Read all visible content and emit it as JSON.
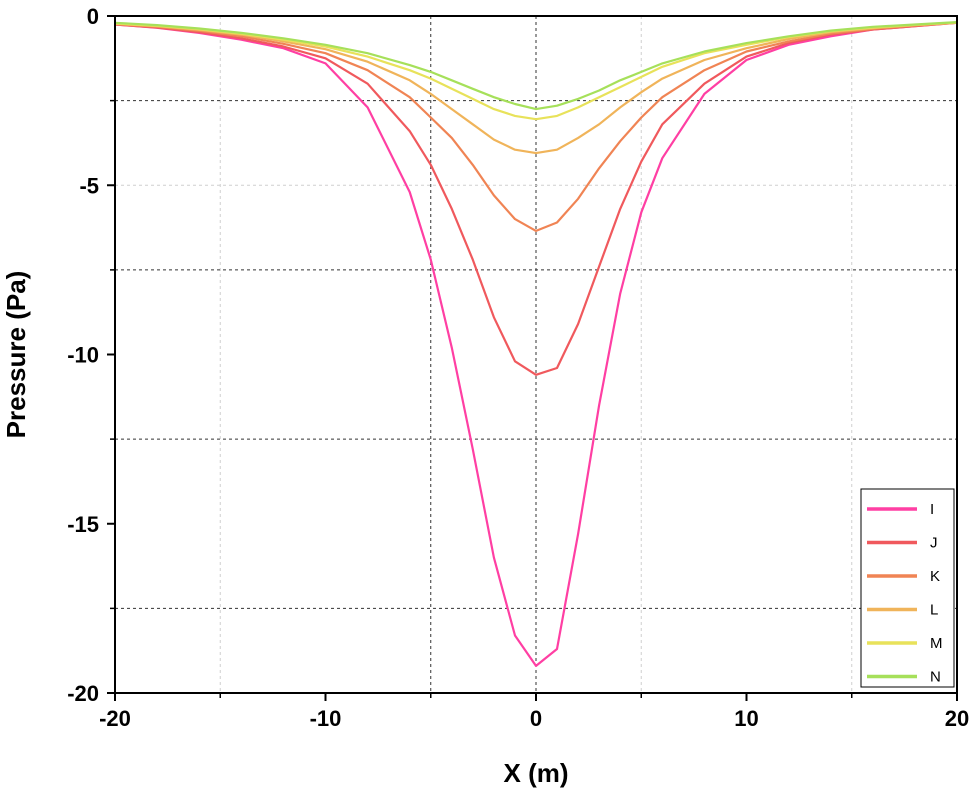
{
  "chart_data": {
    "type": "line",
    "xlabel": "X (m)",
    "ylabel": "Pressure (Pa)",
    "xlim": [
      -20,
      20
    ],
    "ylim": [
      -20,
      0
    ],
    "x_ticks": [
      -20,
      -10,
      0,
      10,
      20
    ],
    "y_ticks": [
      0,
      -5,
      -10,
      -15,
      -20
    ],
    "x_tick_labels": [
      "-20",
      "-10",
      "0",
      "10",
      "20"
    ],
    "y_tick_labels": [
      "0",
      "-5",
      "-10",
      "-15",
      "-20"
    ],
    "grid": "dashed (x: -15, -5, 0, 5, 15; y: -2.5, -5, -7.5, -12.5, -17.5)",
    "legend_position": "bottom-right",
    "x": [
      -20,
      -18,
      -16,
      -14,
      -12,
      -10,
      -8,
      -6,
      -5,
      -4,
      -3,
      -2,
      -1,
      0,
      1,
      2,
      3,
      4,
      5,
      6,
      8,
      10,
      12,
      14,
      16,
      18,
      20
    ],
    "series": [
      {
        "name": "I",
        "color": "#ff3fa3",
        "values": [
          -0.25,
          -0.35,
          -0.5,
          -0.7,
          -0.95,
          -1.4,
          -2.7,
          -5.2,
          -7.2,
          -9.8,
          -12.8,
          -16.0,
          -18.3,
          -19.2,
          -18.7,
          -15.3,
          -11.5,
          -8.2,
          -5.8,
          -4.2,
          -2.3,
          -1.3,
          -0.85,
          -0.6,
          -0.4,
          -0.3,
          -0.2
        ]
      },
      {
        "name": "J",
        "color": "#f0595d",
        "values": [
          -0.25,
          -0.34,
          -0.48,
          -0.66,
          -0.9,
          -1.25,
          -2.0,
          -3.4,
          -4.4,
          -5.7,
          -7.2,
          -8.9,
          -10.2,
          -10.6,
          -10.4,
          -9.1,
          -7.4,
          -5.7,
          -4.3,
          -3.2,
          -2.0,
          -1.2,
          -0.8,
          -0.55,
          -0.4,
          -0.3,
          -0.2
        ]
      },
      {
        "name": "K",
        "color": "#f08454",
        "values": [
          -0.24,
          -0.32,
          -0.44,
          -0.6,
          -0.82,
          -1.1,
          -1.6,
          -2.4,
          -3.0,
          -3.6,
          -4.4,
          -5.3,
          -6.0,
          -6.35,
          -6.1,
          -5.4,
          -4.5,
          -3.7,
          -3.0,
          -2.4,
          -1.6,
          -1.05,
          -0.75,
          -0.52,
          -0.38,
          -0.28,
          -0.2
        ]
      },
      {
        "name": "L",
        "color": "#f0b45a",
        "values": [
          -0.23,
          -0.3,
          -0.41,
          -0.55,
          -0.75,
          -0.98,
          -1.35,
          -1.9,
          -2.3,
          -2.75,
          -3.2,
          -3.65,
          -3.95,
          -4.05,
          -3.95,
          -3.6,
          -3.2,
          -2.7,
          -2.25,
          -1.85,
          -1.3,
          -0.95,
          -0.68,
          -0.48,
          -0.36,
          -0.27,
          -0.2
        ]
      },
      {
        "name": "M",
        "color": "#e8e25a",
        "values": [
          -0.22,
          -0.29,
          -0.39,
          -0.52,
          -0.7,
          -0.9,
          -1.2,
          -1.6,
          -1.85,
          -2.15,
          -2.45,
          -2.75,
          -2.95,
          -3.05,
          -2.95,
          -2.7,
          -2.4,
          -2.1,
          -1.8,
          -1.5,
          -1.1,
          -0.85,
          -0.62,
          -0.45,
          -0.34,
          -0.26,
          -0.19
        ]
      },
      {
        "name": "N",
        "color": "#a6e05a",
        "values": [
          -0.2,
          -0.27,
          -0.37,
          -0.5,
          -0.66,
          -0.85,
          -1.1,
          -1.45,
          -1.65,
          -1.9,
          -2.15,
          -2.4,
          -2.6,
          -2.75,
          -2.65,
          -2.45,
          -2.2,
          -1.9,
          -1.65,
          -1.4,
          -1.05,
          -0.8,
          -0.6,
          -0.43,
          -0.32,
          -0.25,
          -0.18
        ]
      }
    ]
  }
}
